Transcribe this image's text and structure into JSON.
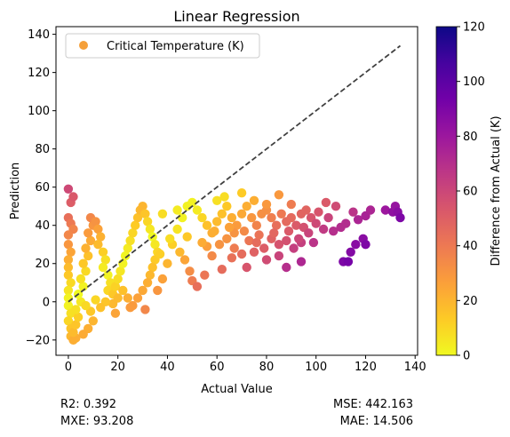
{
  "chart_data": {
    "type": "scatter",
    "title": "Linear Regression",
    "xlabel": "Actual Value",
    "ylabel": "Prediction",
    "xlim": [
      -5,
      141
    ],
    "ylim": [
      -28,
      144
    ],
    "xticks": [
      0,
      20,
      40,
      60,
      80,
      100,
      120,
      140
    ],
    "yticks": [
      -20,
      0,
      20,
      40,
      60,
      80,
      100,
      120,
      140
    ],
    "grid": false,
    "legend": {
      "placement": "top-left",
      "entries": [
        {
          "label": "Critical Temperature (K)",
          "color": "#f5a03a"
        }
      ]
    },
    "reference_line": {
      "style": "dashed",
      "color": "#404040",
      "x": [
        0,
        134
      ],
      "y": [
        0,
        134
      ]
    },
    "colorbar": {
      "label": "Difference from Actual (K)",
      "range": [
        0,
        120
      ],
      "ticks": [
        0,
        20,
        40,
        60,
        80,
        100,
        120
      ],
      "colormap": [
        "#f0f921",
        "#fdca26",
        "#fb9f3a",
        "#ed7953",
        "#d8576b",
        "#bd3786",
        "#9c179e",
        "#7201a8",
        "#46039f",
        "#0d0887"
      ]
    },
    "series": [
      {
        "points": [
          [
            0,
            59
          ],
          [
            1,
            52
          ],
          [
            2,
            55
          ],
          [
            0,
            44
          ],
          [
            1,
            41
          ],
          [
            2,
            38
          ],
          [
            0,
            35
          ],
          [
            0,
            30
          ],
          [
            1,
            26
          ],
          [
            0,
            22
          ],
          [
            0,
            18
          ],
          [
            0,
            14
          ],
          [
            1,
            10
          ],
          [
            0,
            6
          ],
          [
            0,
            2
          ],
          [
            0,
            -2
          ],
          [
            1,
            -6
          ],
          [
            0,
            -10
          ],
          [
            1,
            -14
          ],
          [
            1,
            -18
          ],
          [
            2,
            -20
          ],
          [
            3,
            -19
          ],
          [
            2,
            -16
          ],
          [
            3,
            -12
          ],
          [
            4,
            -8
          ],
          [
            3,
            -4
          ],
          [
            5,
            0
          ],
          [
            4,
            4
          ],
          [
            6,
            8
          ],
          [
            5,
            12
          ],
          [
            7,
            16
          ],
          [
            6,
            20
          ],
          [
            8,
            24
          ],
          [
            7,
            28
          ],
          [
            9,
            32
          ],
          [
            8,
            36
          ],
          [
            10,
            40
          ],
          [
            9,
            44
          ],
          [
            11,
            42
          ],
          [
            12,
            38
          ],
          [
            13,
            34
          ],
          [
            12,
            30
          ],
          [
            14,
            26
          ],
          [
            15,
            22
          ],
          [
            14,
            18
          ],
          [
            16,
            14
          ],
          [
            17,
            10
          ],
          [
            16,
            6
          ],
          [
            18,
            4
          ],
          [
            19,
            8
          ],
          [
            20,
            12
          ],
          [
            21,
            16
          ],
          [
            22,
            20
          ],
          [
            23,
            24
          ],
          [
            24,
            28
          ],
          [
            25,
            32
          ],
          [
            26,
            36
          ],
          [
            27,
            40
          ],
          [
            28,
            44
          ],
          [
            29,
            48
          ],
          [
            30,
            50
          ],
          [
            31,
            46
          ],
          [
            32,
            42
          ],
          [
            33,
            38
          ],
          [
            34,
            34
          ],
          [
            35,
            30
          ],
          [
            36,
            26
          ],
          [
            35,
            22
          ],
          [
            34,
            18
          ],
          [
            33,
            14
          ],
          [
            32,
            10
          ],
          [
            30,
            6
          ],
          [
            28,
            2
          ],
          [
            26,
            -2
          ],
          [
            24,
            2
          ],
          [
            22,
            6
          ],
          [
            20,
            2
          ],
          [
            18,
            -1
          ],
          [
            15,
            0
          ],
          [
            13,
            -3
          ],
          [
            11,
            1
          ],
          [
            9,
            -5
          ],
          [
            7,
            -2
          ],
          [
            10,
            -10
          ],
          [
            8,
            -14
          ],
          [
            6,
            -17
          ],
          [
            19,
            -6
          ],
          [
            25,
            -3
          ],
          [
            31,
            -4
          ],
          [
            38,
            12
          ],
          [
            40,
            20
          ],
          [
            42,
            30
          ],
          [
            44,
            38
          ],
          [
            46,
            44
          ],
          [
            48,
            50
          ],
          [
            50,
            52
          ],
          [
            52,
            48
          ],
          [
            54,
            44
          ],
          [
            56,
            40
          ],
          [
            58,
            36
          ],
          [
            60,
            42
          ],
          [
            62,
            46
          ],
          [
            64,
            50
          ],
          [
            66,
            44
          ],
          [
            68,
            40
          ],
          [
            70,
            46
          ],
          [
            72,
            50
          ],
          [
            74,
            44
          ],
          [
            76,
            40
          ],
          [
            78,
            46
          ],
          [
            80,
            48
          ],
          [
            82,
            44
          ],
          [
            84,
            40
          ],
          [
            86,
            46
          ],
          [
            88,
            42
          ],
          [
            90,
            44
          ],
          [
            92,
            40
          ],
          [
            94,
            46
          ],
          [
            96,
            48
          ],
          [
            98,
            44
          ],
          [
            45,
            26
          ],
          [
            47,
            22
          ],
          [
            49,
            16
          ],
          [
            50,
            11
          ],
          [
            52,
            8
          ],
          [
            55,
            14
          ],
          [
            58,
            24
          ],
          [
            61,
            30
          ],
          [
            64,
            33
          ],
          [
            67,
            28
          ],
          [
            70,
            25
          ],
          [
            73,
            32
          ],
          [
            76,
            31
          ],
          [
            79,
            28
          ],
          [
            82,
            33
          ],
          [
            85,
            30
          ],
          [
            88,
            32
          ],
          [
            91,
            28
          ],
          [
            94,
            31
          ],
          [
            95,
            39
          ],
          [
            60,
            53
          ],
          [
            63,
            55
          ],
          [
            70,
            57
          ],
          [
            75,
            53
          ],
          [
            80,
            51
          ],
          [
            85,
            56
          ],
          [
            90,
            51
          ],
          [
            67,
            36
          ],
          [
            56,
            29
          ],
          [
            44,
            48
          ],
          [
            41,
            33
          ],
          [
            37,
            25
          ],
          [
            36,
            6
          ],
          [
            38,
            46
          ],
          [
            48,
            34
          ],
          [
            54,
            31
          ],
          [
            59,
            37
          ],
          [
            65,
            39
          ],
          [
            71,
            37
          ],
          [
            77,
            35
          ],
          [
            83,
            36
          ],
          [
            89,
            37
          ],
          [
            93,
            33
          ],
          [
            97,
            36
          ],
          [
            100,
            41
          ],
          [
            103,
            38
          ],
          [
            105,
            44
          ],
          [
            107,
            37
          ],
          [
            110,
            39
          ],
          [
            112,
            41
          ],
          [
            115,
            47
          ],
          [
            117,
            43
          ],
          [
            120,
            45
          ],
          [
            122,
            48
          ],
          [
            99,
            31
          ],
          [
            101,
            47
          ],
          [
            104,
            52
          ],
          [
            108,
            50
          ],
          [
            111,
            21
          ],
          [
            113,
            21
          ],
          [
            114,
            26
          ],
          [
            116,
            30
          ],
          [
            119,
            33
          ],
          [
            120,
            30
          ],
          [
            128,
            48
          ],
          [
            131,
            47
          ],
          [
            132,
            50
          ],
          [
            133,
            47
          ],
          [
            134,
            44
          ],
          [
            94,
            21
          ],
          [
            88,
            18
          ],
          [
            85,
            24
          ],
          [
            80,
            22
          ],
          [
            75,
            26
          ],
          [
            72,
            18
          ],
          [
            66,
            23
          ],
          [
            62,
            17
          ]
        ]
      }
    ]
  },
  "metrics": {
    "r2": "R2: 0.392",
    "mxe": "MXE: 93.208",
    "mse": "MSE: 442.163",
    "mae": "MAE: 14.506"
  }
}
